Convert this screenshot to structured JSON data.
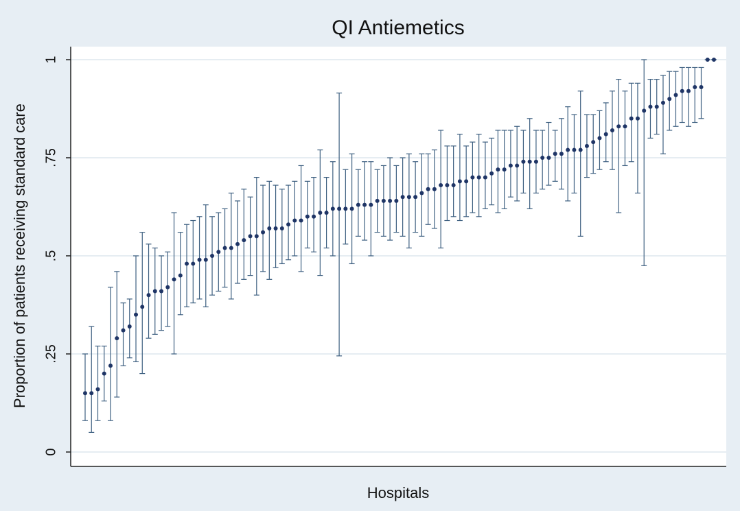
{
  "chart_data": {
    "type": "caterpillar",
    "title": "QI Antiemetics",
    "ylabel": "Proportion of patients receiving standard care",
    "xlabel": "Hospitals",
    "ylim": [
      0,
      1
    ],
    "yticks": [
      0,
      {
        "value": 0.25,
        "label": ".25"
      },
      {
        "value": 0.5,
        "label": ".5"
      },
      {
        "value": 0.75,
        "label": ".75"
      },
      1
    ],
    "grid": true,
    "color": "#1f3566",
    "error_color": "#3d5f80",
    "values": [
      0.15,
      0.15,
      0.16,
      0.2,
      0.22,
      0.29,
      0.31,
      0.32,
      0.35,
      0.37,
      0.4,
      0.41,
      0.41,
      0.42,
      0.44,
      0.45,
      0.48,
      0.48,
      0.49,
      0.49,
      0.5,
      0.51,
      0.52,
      0.52,
      0.53,
      0.54,
      0.55,
      0.55,
      0.56,
      0.57,
      0.57,
      0.57,
      0.58,
      0.59,
      0.59,
      0.6,
      0.6,
      0.61,
      0.61,
      0.62,
      0.62,
      0.62,
      0.62,
      0.63,
      0.63,
      0.63,
      0.64,
      0.64,
      0.64,
      0.64,
      0.65,
      0.65,
      0.65,
      0.66,
      0.67,
      0.67,
      0.68,
      0.68,
      0.68,
      0.69,
      0.69,
      0.7,
      0.7,
      0.7,
      0.71,
      0.72,
      0.72,
      0.73,
      0.73,
      0.74,
      0.74,
      0.74,
      0.75,
      0.75,
      0.76,
      0.76,
      0.77,
      0.77,
      0.77,
      0.78,
      0.79,
      0.8,
      0.81,
      0.82,
      0.83,
      0.83,
      0.85,
      0.85,
      0.87,
      0.88,
      0.88,
      0.89,
      0.9,
      0.91,
      0.92,
      0.92,
      0.93,
      0.93,
      1.0,
      1.0
    ],
    "lower": [
      0.08,
      0.05,
      0.08,
      0.13,
      0.08,
      0.14,
      0.22,
      0.24,
      0.23,
      0.2,
      0.29,
      0.3,
      0.31,
      0.32,
      0.25,
      0.35,
      0.37,
      0.38,
      0.39,
      0.37,
      0.4,
      0.41,
      0.42,
      0.39,
      0.43,
      0.44,
      0.45,
      0.4,
      0.46,
      0.44,
      0.47,
      0.48,
      0.49,
      0.5,
      0.46,
      0.52,
      0.51,
      0.45,
      0.52,
      0.5,
      0.245,
      0.53,
      0.48,
      0.55,
      0.54,
      0.5,
      0.56,
      0.55,
      0.54,
      0.56,
      0.55,
      0.52,
      0.56,
      0.55,
      0.58,
      0.57,
      0.52,
      0.59,
      0.6,
      0.59,
      0.6,
      0.61,
      0.6,
      0.62,
      0.63,
      0.61,
      0.62,
      0.65,
      0.64,
      0.66,
      0.62,
      0.66,
      0.67,
      0.68,
      0.69,
      0.67,
      0.64,
      0.66,
      0.55,
      0.7,
      0.71,
      0.72,
      0.74,
      0.72,
      0.61,
      0.73,
      0.74,
      0.66,
      0.475,
      0.8,
      0.81,
      0.76,
      0.82,
      0.83,
      0.84,
      0.83,
      0.84,
      0.85,
      1.0,
      1.0
    ],
    "upper": [
      0.25,
      0.32,
      0.27,
      0.27,
      0.42,
      0.46,
      0.38,
      0.39,
      0.5,
      0.56,
      0.53,
      0.52,
      0.5,
      0.51,
      0.61,
      0.56,
      0.58,
      0.59,
      0.6,
      0.63,
      0.6,
      0.61,
      0.62,
      0.66,
      0.64,
      0.67,
      0.65,
      0.7,
      0.68,
      0.69,
      0.68,
      0.67,
      0.68,
      0.69,
      0.73,
      0.69,
      0.7,
      0.77,
      0.7,
      0.74,
      0.915,
      0.72,
      0.76,
      0.72,
      0.74,
      0.74,
      0.72,
      0.73,
      0.75,
      0.73,
      0.75,
      0.76,
      0.74,
      0.76,
      0.76,
      0.77,
      0.82,
      0.78,
      0.78,
      0.81,
      0.78,
      0.79,
      0.81,
      0.79,
      0.8,
      0.82,
      0.82,
      0.82,
      0.83,
      0.82,
      0.85,
      0.82,
      0.82,
      0.84,
      0.82,
      0.85,
      0.88,
      0.86,
      0.92,
      0.86,
      0.86,
      0.87,
      0.89,
      0.92,
      0.95,
      0.92,
      0.94,
      0.94,
      1.0,
      0.95,
      0.95,
      0.96,
      0.97,
      0.97,
      0.98,
      0.98,
      0.98,
      0.98,
      1.0,
      1.0
    ]
  }
}
